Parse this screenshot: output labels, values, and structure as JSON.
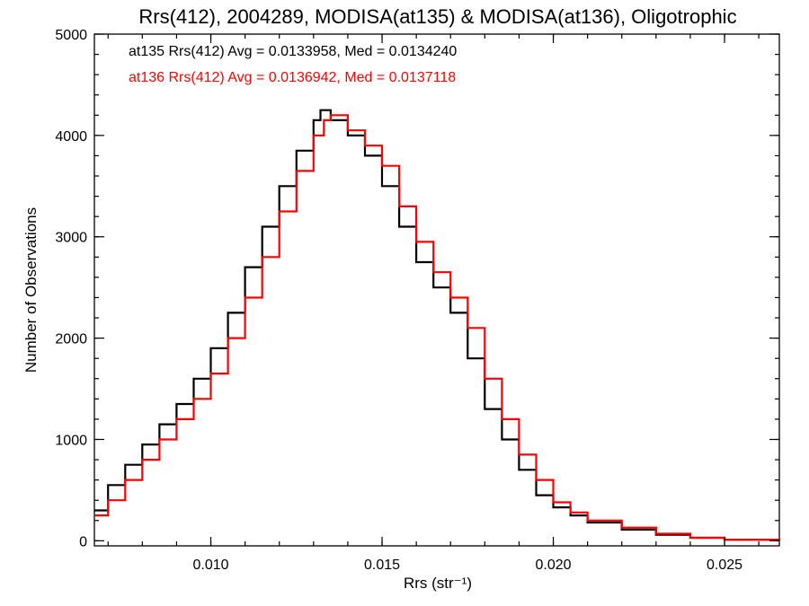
{
  "chart_data": {
    "type": "line",
    "title": "Rrs(412), 2004289, MODISA(at135) & MODISA(at136), Oligotrophic",
    "xlabel": "Rrs (str⁻¹)",
    "ylabel": "Number of Observations",
    "xlim": [
      0.0066,
      0.0266
    ],
    "ylim": [
      -50,
      5000
    ],
    "x_ticks": [
      {
        "value": 0.01,
        "label": "0.010"
      },
      {
        "value": 0.015,
        "label": "0.015"
      },
      {
        "value": 0.02,
        "label": "0.020"
      },
      {
        "value": 0.025,
        "label": "0.025"
      }
    ],
    "y_ticks": [
      {
        "value": 0,
        "label": "0"
      },
      {
        "value": 1000,
        "label": "1000"
      },
      {
        "value": 2000,
        "label": "2000"
      },
      {
        "value": 3000,
        "label": "3000"
      },
      {
        "value": 4000,
        "label": "4000"
      },
      {
        "value": 5000,
        "label": "5000"
      }
    ],
    "grid": false,
    "legend_position": "top-left",
    "series": [
      {
        "name": "at135",
        "color": "#000000",
        "legend_text": "at135 Rrs(412) Avg = 0.0133958, Med = 0.0134240",
        "x": [
          0.0066,
          0.007,
          0.0075,
          0.008,
          0.0085,
          0.009,
          0.0095,
          0.01,
          0.0105,
          0.011,
          0.0115,
          0.012,
          0.0125,
          0.013,
          0.0132,
          0.0135,
          0.014,
          0.0145,
          0.015,
          0.0155,
          0.016,
          0.0165,
          0.017,
          0.0175,
          0.018,
          0.0185,
          0.019,
          0.0195,
          0.02,
          0.0205,
          0.021,
          0.022,
          0.023,
          0.024,
          0.025,
          0.0266
        ],
        "y": [
          300,
          550,
          750,
          950,
          1150,
          1350,
          1600,
          1900,
          2250,
          2700,
          3100,
          3500,
          3850,
          4150,
          4250,
          4150,
          4000,
          3800,
          3500,
          3100,
          2750,
          2500,
          2250,
          1800,
          1300,
          1000,
          700,
          450,
          330,
          250,
          180,
          110,
          60,
          30,
          10,
          0
        ]
      },
      {
        "name": "at136",
        "color": "#ff0000",
        "legend_text": "at136 Rrs(412) Avg = 0.0136942, Med = 0.0137118",
        "x": [
          0.0066,
          0.007,
          0.0075,
          0.008,
          0.0085,
          0.009,
          0.0095,
          0.01,
          0.0105,
          0.011,
          0.0115,
          0.012,
          0.0125,
          0.013,
          0.0133,
          0.0135,
          0.014,
          0.0145,
          0.015,
          0.0155,
          0.016,
          0.0165,
          0.017,
          0.0175,
          0.018,
          0.0185,
          0.019,
          0.0195,
          0.02,
          0.0205,
          0.021,
          0.022,
          0.023,
          0.024,
          0.025,
          0.0266
        ],
        "y": [
          250,
          400,
          600,
          800,
          1000,
          1200,
          1400,
          1650,
          2000,
          2400,
          2800,
          3250,
          3650,
          4000,
          4150,
          4200,
          4050,
          3900,
          3700,
          3300,
          2950,
          2650,
          2400,
          2100,
          1600,
          1200,
          850,
          600,
          380,
          280,
          200,
          130,
          70,
          30,
          10,
          0
        ]
      }
    ]
  }
}
